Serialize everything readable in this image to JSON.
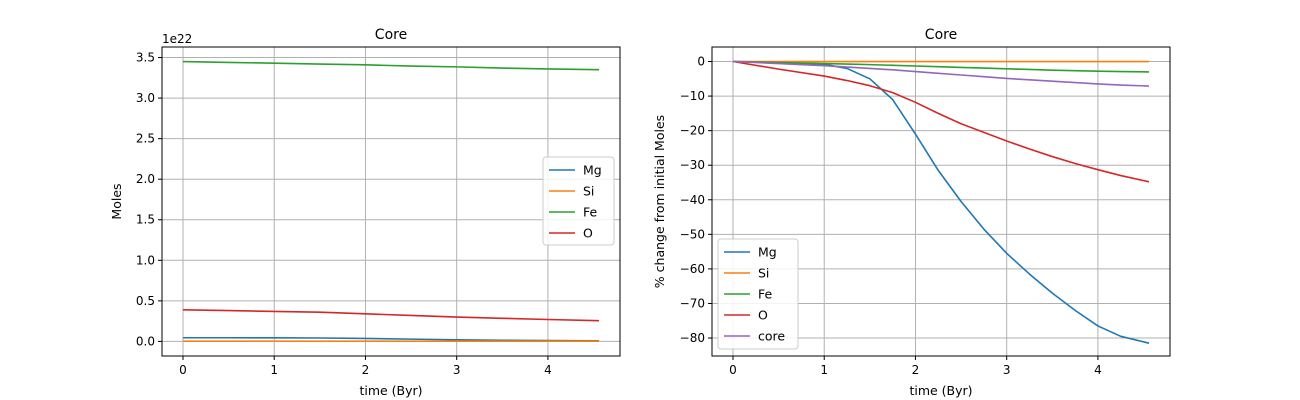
{
  "chart_data": [
    {
      "type": "line",
      "title": "Core",
      "xlabel": "time (Byr)",
      "ylabel": "Moles",
      "offset_text": "1e22",
      "xlim": [
        -0.23,
        4.79
      ],
      "ylim": [
        -0.18,
        3.63
      ],
      "xticks": [
        0,
        1,
        2,
        3,
        4
      ],
      "xtick_labels": [
        "0",
        "1",
        "2",
        "3",
        "4"
      ],
      "yticks": [
        0.0,
        0.5,
        1.0,
        1.5,
        2.0,
        2.5,
        3.0,
        3.5
      ],
      "ytick_labels": [
        "0.0",
        "0.5",
        "1.0",
        "1.5",
        "2.0",
        "2.5",
        "3.0",
        "3.5"
      ],
      "grid": true,
      "legend": "center-right",
      "x": [
        0,
        0.5,
        1.0,
        1.5,
        2.0,
        2.5,
        3.0,
        3.5,
        4.0,
        4.56
      ],
      "series": [
        {
          "name": "Mg",
          "color": "#1f77b4",
          "values": [
            0.045,
            0.045,
            0.044,
            0.042,
            0.036,
            0.028,
            0.02,
            0.014,
            0.01,
            0.008
          ]
        },
        {
          "name": "Si",
          "color": "#ff7f0e",
          "values": [
            0.003,
            0.003,
            0.003,
            0.003,
            0.003,
            0.003,
            0.003,
            0.003,
            0.003,
            0.003
          ]
        },
        {
          "name": "Fe",
          "color": "#2ca02c",
          "values": [
            3.45,
            3.44,
            3.43,
            3.42,
            3.41,
            3.395,
            3.385,
            3.37,
            3.36,
            3.35
          ]
        },
        {
          "name": "O",
          "color": "#d62728",
          "values": [
            0.39,
            0.38,
            0.37,
            0.36,
            0.34,
            0.32,
            0.3,
            0.285,
            0.27,
            0.255
          ]
        }
      ]
    },
    {
      "type": "line",
      "title": "Core",
      "xlabel": "time (Byr)",
      "ylabel": "% change from initial Moles",
      "xlim": [
        -0.23,
        4.79
      ],
      "ylim": [
        -85.2,
        4.2
      ],
      "xticks": [
        0,
        1,
        2,
        3,
        4
      ],
      "xtick_labels": [
        "0",
        "1",
        "2",
        "3",
        "4"
      ],
      "yticks": [
        0,
        -10,
        -20,
        -30,
        -40,
        -50,
        -60,
        -70,
        -80
      ],
      "ytick_labels": [
        "0",
        "−10",
        "−20",
        "−30",
        "−40",
        "−50",
        "−60",
        "−70",
        "−80"
      ],
      "grid": true,
      "legend": "lower-left",
      "x": [
        0,
        0.5,
        1.0,
        1.25,
        1.5,
        1.75,
        2.0,
        2.25,
        2.5,
        2.75,
        3.0,
        3.25,
        3.5,
        3.75,
        4.0,
        4.25,
        4.56
      ],
      "series": [
        {
          "name": "Mg",
          "color": "#1f77b4",
          "values": [
            0,
            -0.2,
            -0.8,
            -2.0,
            -5.0,
            -11.0,
            -21.0,
            -31.5,
            -40.5,
            -48.5,
            -55.5,
            -61.5,
            -67.0,
            -72.0,
            -76.5,
            -79.5,
            -81.5
          ]
        },
        {
          "name": "Si",
          "color": "#ff7f0e",
          "values": [
            0,
            0,
            0,
            0,
            0,
            0,
            0,
            0,
            0,
            0,
            0,
            0,
            0,
            0,
            0,
            0,
            0
          ]
        },
        {
          "name": "Fe",
          "color": "#2ca02c",
          "values": [
            0,
            -0.3,
            -0.6,
            -0.75,
            -0.9,
            -1.1,
            -1.3,
            -1.5,
            -1.7,
            -1.9,
            -2.1,
            -2.3,
            -2.5,
            -2.65,
            -2.8,
            -2.9,
            -3.0
          ]
        },
        {
          "name": "O",
          "color": "#d62728",
          "values": [
            0,
            -2.2,
            -4.2,
            -5.5,
            -7.0,
            -9.0,
            -11.8,
            -15.0,
            -18.0,
            -20.5,
            -23.0,
            -25.3,
            -27.5,
            -29.5,
            -31.3,
            -33.0,
            -34.8
          ]
        },
        {
          "name": "core",
          "color": "#9467bd",
          "values": [
            0,
            -0.6,
            -1.2,
            -1.6,
            -2.0,
            -2.4,
            -2.9,
            -3.4,
            -3.9,
            -4.4,
            -4.9,
            -5.3,
            -5.7,
            -6.1,
            -6.5,
            -6.8,
            -7.1
          ]
        }
      ]
    }
  ]
}
